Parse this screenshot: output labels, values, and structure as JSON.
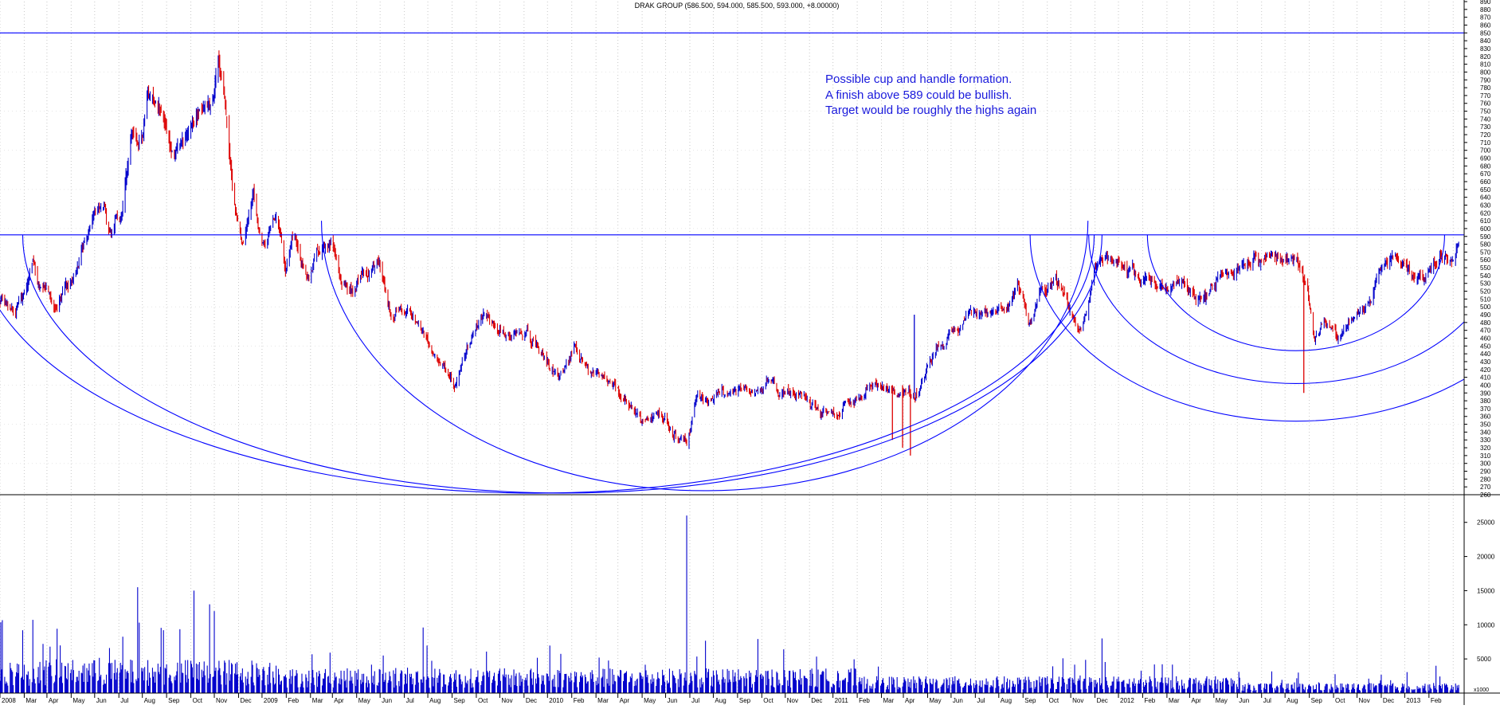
{
  "chart_title": "DRAK GROUP (586.500, 594.000, 585.500, 593.000, +8.00000)",
  "annotation": [
    "Possible cup and handle formation.",
    "A finish above 589 could be bullish.",
    "Target would be roughly the highs again"
  ],
  "colors": {
    "up": "#0000cc",
    "down": "#dd0000",
    "lines": "#0000ff",
    "annotation": "#1a1adc",
    "grid": "#c8c8c8"
  },
  "chart_data": [
    {
      "type": "line",
      "subtype": "ohlc",
      "x_range": [
        "2008-01-01",
        "2013-02-15"
      ],
      "ylim": [
        260,
        890
      ],
      "y_ticks": [
        260,
        270,
        280,
        290,
        300,
        310,
        320,
        330,
        340,
        350,
        360,
        370,
        380,
        390,
        400,
        410,
        420,
        430,
        440,
        450,
        460,
        470,
        480,
        490,
        500,
        510,
        520,
        530,
        540,
        550,
        560,
        570,
        580,
        590,
        600,
        610,
        620,
        630,
        640,
        650,
        660,
        670,
        680,
        690,
        700,
        710,
        720,
        730,
        740,
        750,
        760,
        770,
        780,
        790,
        800,
        810,
        820,
        830,
        840,
        850,
        860,
        870,
        880,
        890
      ],
      "price_path": [
        [
          "2008-01-01",
          505
        ],
        [
          "2008-01-20",
          495
        ],
        [
          "2008-02-12",
          555
        ],
        [
          "2008-02-20",
          525
        ],
        [
          "2008-03-10",
          505
        ],
        [
          "2008-04-05",
          545
        ],
        [
          "2008-04-25",
          590
        ],
        [
          "2008-05-10",
          635
        ],
        [
          "2008-05-22",
          600
        ],
        [
          "2008-06-05",
          620
        ],
        [
          "2008-06-18",
          730
        ],
        [
          "2008-06-28",
          700
        ],
        [
          "2008-07-08",
          770
        ],
        [
          "2008-07-25",
          750
        ],
        [
          "2008-08-10",
          705
        ],
        [
          "2008-08-30",
          725
        ],
        [
          "2008-09-15",
          750
        ],
        [
          "2008-09-30",
          770
        ],
        [
          "2008-10-06",
          820
        ],
        [
          "2008-10-15",
          765
        ],
        [
          "2008-10-25",
          640
        ],
        [
          "2008-11-05",
          580
        ],
        [
          "2008-11-20",
          640
        ],
        [
          "2008-12-01",
          575
        ],
        [
          "2008-12-20",
          620
        ],
        [
          "2008-12-31",
          555
        ],
        [
          "2009-01-12",
          590
        ],
        [
          "2009-01-28",
          535
        ],
        [
          "2009-02-10",
          565
        ],
        [
          "2009-02-28",
          575
        ],
        [
          "2009-03-10",
          530
        ],
        [
          "2009-03-25",
          515
        ],
        [
          "2009-04-10",
          540
        ],
        [
          "2009-04-30",
          550
        ],
        [
          "2009-05-15",
          495
        ],
        [
          "2009-06-10",
          495
        ],
        [
          "2009-06-30",
          460
        ],
        [
          "2009-07-20",
          420
        ],
        [
          "2009-08-05",
          400
        ],
        [
          "2009-08-25",
          460
        ],
        [
          "2009-09-10",
          490
        ],
        [
          "2009-09-28",
          470
        ],
        [
          "2009-10-15",
          470
        ],
        [
          "2009-11-05",
          475
        ],
        [
          "2009-11-28",
          430
        ],
        [
          "2009-12-15",
          410
        ],
        [
          "2010-01-05",
          445
        ],
        [
          "2010-01-25",
          420
        ],
        [
          "2010-02-15",
          415
        ],
        [
          "2010-03-10",
          380
        ],
        [
          "2010-04-01",
          355
        ],
        [
          "2010-04-25",
          370
        ],
        [
          "2010-05-10",
          335
        ],
        [
          "2010-05-28",
          325
        ],
        [
          "2010-06-10",
          390
        ],
        [
          "2010-06-30",
          380
        ],
        [
          "2010-07-25",
          390
        ],
        [
          "2010-08-15",
          395
        ],
        [
          "2010-09-05",
          410
        ],
        [
          "2010-09-25",
          385
        ],
        [
          "2010-10-25",
          380
        ],
        [
          "2010-11-20",
          370
        ],
        [
          "2010-12-10",
          365
        ],
        [
          "2011-01-10",
          395
        ],
        [
          "2011-02-10",
          400
        ],
        [
          "2011-03-05",
          400
        ],
        [
          "2011-03-20",
          385
        ],
        [
          "2011-04-05",
          440
        ],
        [
          "2011-04-25",
          460
        ],
        [
          "2011-05-20",
          480
        ],
        [
          "2011-06-15",
          500
        ],
        [
          "2011-07-10",
          495
        ],
        [
          "2011-07-25",
          530
        ],
        [
          "2011-08-08",
          470
        ],
        [
          "2011-08-25",
          520
        ],
        [
          "2011-09-10",
          530
        ],
        [
          "2011-09-28",
          505
        ],
        [
          "2011-10-15",
          470
        ],
        [
          "2011-11-01",
          550
        ],
        [
          "2011-11-20",
          560
        ],
        [
          "2011-12-05",
          550
        ],
        [
          "2011-12-25",
          540
        ],
        [
          "2012-01-20",
          530
        ],
        [
          "2012-02-20",
          525
        ],
        [
          "2012-03-15",
          510
        ],
        [
          "2012-04-10",
          535
        ],
        [
          "2012-04-30",
          545
        ],
        [
          "2012-05-20",
          565
        ],
        [
          "2012-06-05",
          565
        ],
        [
          "2012-06-25",
          555
        ],
        [
          "2012-07-15",
          560
        ],
        [
          "2012-07-30",
          520
        ],
        [
          "2012-08-08",
          460
        ],
        [
          "2012-08-20",
          480
        ],
        [
          "2012-09-05",
          460
        ],
        [
          "2012-09-25",
          485
        ],
        [
          "2012-10-15",
          510
        ],
        [
          "2012-11-01",
          550
        ],
        [
          "2012-11-20",
          565
        ],
        [
          "2012-12-05",
          545
        ],
        [
          "2012-12-25",
          530
        ],
        [
          "2013-01-15",
          560
        ],
        [
          "2013-02-01",
          565
        ],
        [
          "2013-02-10",
          593
        ]
      ],
      "spikes": [
        [
          "2011-02-15",
          330
        ],
        [
          "2011-02-28",
          320
        ],
        [
          "2011-03-10",
          310
        ],
        [
          "2011-03-15",
          490
        ],
        [
          "2012-07-25",
          390
        ]
      ],
      "horizontal_lines": [
        850,
        592
      ],
      "arcs": [
        {
          "x": "2010-06-20",
          "y": 610,
          "rx_days": 490,
          "ry": 345
        },
        {
          "x": "2009-12-20",
          "y": 592,
          "rx_days": 690,
          "ry": 330
        },
        {
          "x": "2009-11-15",
          "y": 592,
          "rx_days": 715,
          "ry": 330
        },
        {
          "x": "2012-07-15",
          "y": 592,
          "rx_days": 190,
          "ry": 148
        },
        {
          "x": "2012-07-15",
          "y": 592,
          "rx_days": 265,
          "ry": 190
        },
        {
          "x": "2012-07-15",
          "y": 592,
          "rx_days": 340,
          "ry": 238
        }
      ]
    },
    {
      "type": "bar",
      "ylim": [
        0,
        28000
      ],
      "y_ticks": [
        5000,
        10000,
        15000,
        20000,
        25000
      ],
      "volume_baseline": 1500,
      "volume_spikes": [
        [
          "2008-01-30",
          9200
        ],
        [
          "2008-02-10",
          8000
        ],
        [
          "2008-02-25",
          7200
        ],
        [
          "2008-03-05",
          6800
        ],
        [
          "2008-06-25",
          15500
        ],
        [
          "2008-09-05",
          15000
        ],
        [
          "2008-09-25",
          13000
        ],
        [
          "2008-10-01",
          12000
        ],
        [
          "2009-05-05",
          5500
        ],
        [
          "2009-06-25",
          9600
        ],
        [
          "2010-02-05",
          5200
        ],
        [
          "2010-04-10",
          8200
        ],
        [
          "2010-05-28",
          26000
        ],
        [
          "2010-06-05",
          7000
        ],
        [
          "2011-11-10",
          8000
        ],
        [
          "2012-08-05",
          10400
        ],
        [
          "2013-01-10",
          4000
        ]
      ]
    }
  ],
  "x_axis_labels": [
    "2008",
    "Mar",
    "Apr",
    "May",
    "Jun",
    "Jul",
    "Aug",
    "Sep",
    "Oct",
    "Nov",
    "Dec",
    "2009",
    "Feb",
    "Mar",
    "Apr",
    "May",
    "Jun",
    "Jul",
    "Aug",
    "Sep",
    "Oct",
    "Nov",
    "Dec",
    "2010",
    "Feb",
    "Mar",
    "Apr",
    "May",
    "Jun",
    "Jul",
    "Aug",
    "Sep",
    "Oct",
    "Nov",
    "Dec",
    "2011",
    "Feb",
    "Mar",
    "Apr",
    "May",
    "Jun",
    "Jul",
    "Aug",
    "Sep",
    "Oct",
    "Nov",
    "Dec",
    "2012",
    "Feb",
    "Mar",
    "Apr",
    "May",
    "Jun",
    "Jul",
    "Aug",
    "Sep",
    "Oct",
    "Nov",
    "Dec",
    "2013",
    "Feb"
  ],
  "volume_unit_label": "x1000"
}
